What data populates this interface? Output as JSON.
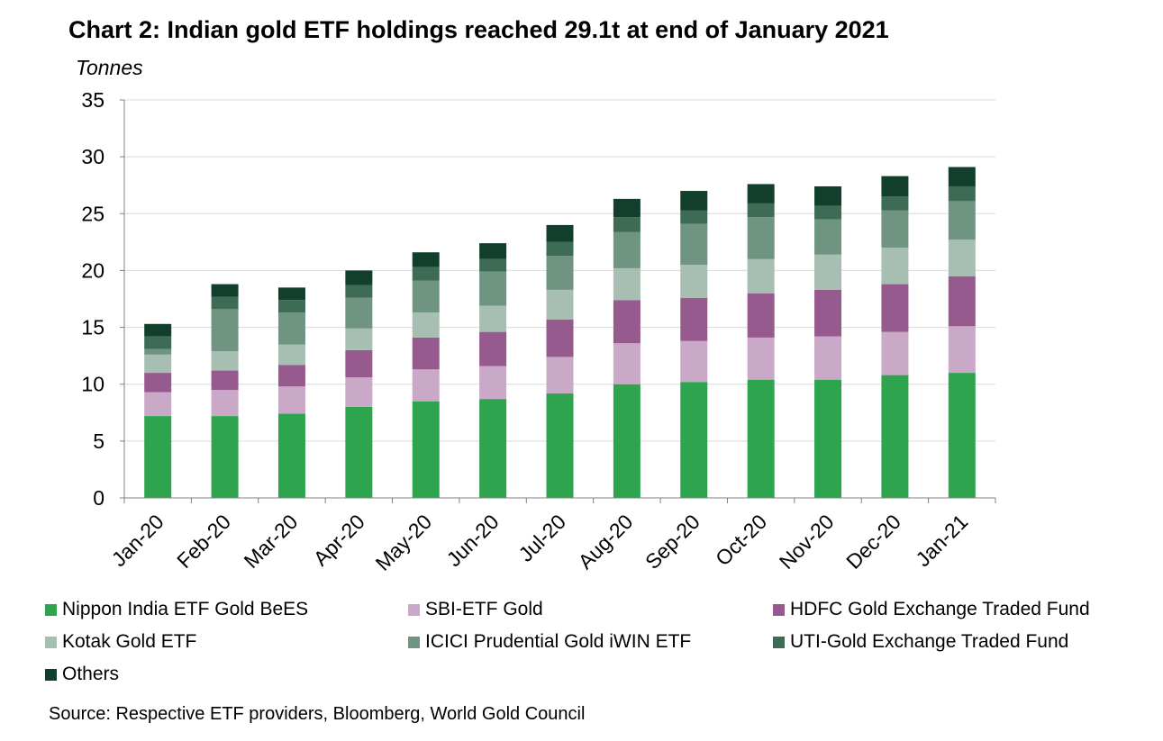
{
  "chart_data": {
    "type": "bar",
    "stacked": true,
    "title": "Chart 2: Indian gold ETF holdings reached 29.1t at end of January 2021",
    "ylabel": "Tonnes",
    "ylim": [
      0,
      35
    ],
    "yticks": [
      0,
      5,
      10,
      15,
      20,
      25,
      30,
      35
    ],
    "grid": true,
    "legend_position": "bottom",
    "categories": [
      "Jan-20",
      "Feb-20",
      "Mar-20",
      "Apr-20",
      "May-20",
      "Jun-20",
      "Jul-20",
      "Aug-20",
      "Sep-20",
      "Oct-20",
      "Nov-20",
      "Dec-20",
      "Jan-21"
    ],
    "series": [
      {
        "name": "Nippon India ETF Gold BeES",
        "color": "#2ea44f",
        "values": [
          7.2,
          7.2,
          7.4,
          8.0,
          8.5,
          8.7,
          9.2,
          10.0,
          10.2,
          10.4,
          10.4,
          10.8,
          11.0
        ]
      },
      {
        "name": "SBI-ETF Gold",
        "color": "#c9a9c7",
        "values": [
          2.1,
          2.3,
          2.4,
          2.6,
          2.8,
          2.9,
          3.2,
          3.6,
          3.6,
          3.7,
          3.8,
          3.8,
          4.1
        ]
      },
      {
        "name": "HDFC Gold Exchange Traded Fund",
        "color": "#975a8f",
        "values": [
          1.7,
          1.7,
          1.9,
          2.4,
          2.8,
          3.0,
          3.3,
          3.8,
          3.8,
          3.9,
          4.1,
          4.2,
          4.4
        ]
      },
      {
        "name": "Kotak Gold ETF",
        "color": "#a7bfb2",
        "values": [
          1.6,
          1.7,
          1.8,
          1.9,
          2.2,
          2.3,
          2.6,
          2.8,
          2.9,
          3.0,
          3.1,
          3.2,
          3.2
        ]
      },
      {
        "name": "ICICI Prudential Gold iWIN ETF",
        "color": "#6f9482",
        "values": [
          0.5,
          3.7,
          2.8,
          2.7,
          2.8,
          3.0,
          3.0,
          3.2,
          3.6,
          3.7,
          3.1,
          3.3,
          3.4
        ]
      },
      {
        "name": "UTI-Gold Exchange Traded Fund",
        "color": "#3d6b55",
        "values": [
          1.1,
          1.1,
          1.1,
          1.1,
          1.2,
          1.1,
          1.2,
          1.3,
          1.2,
          1.2,
          1.2,
          1.2,
          1.3
        ]
      },
      {
        "name": "Others",
        "color": "#123f2c",
        "values": [
          1.1,
          1.1,
          1.1,
          1.3,
          1.3,
          1.4,
          1.5,
          1.6,
          1.7,
          1.7,
          1.7,
          1.8,
          1.7
        ]
      }
    ],
    "source": "Source: Respective ETF providers, Bloomberg, World Gold Council"
  }
}
